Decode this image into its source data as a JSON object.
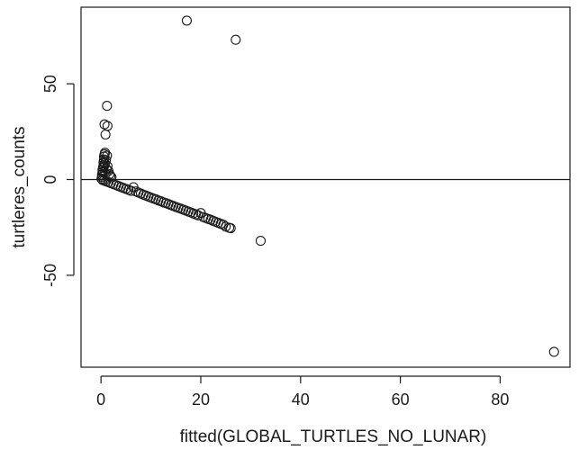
{
  "chart_data": {
    "type": "scatter",
    "title": "",
    "xlabel": "fitted(GLOBAL_TURTLES_NO_LUNAR)",
    "ylabel": "turtleres_counts",
    "xlim": [
      -4,
      94
    ],
    "ylim": [
      -98,
      90
    ],
    "xticks": [
      0,
      20,
      40,
      60,
      80
    ],
    "yticks": [
      -50,
      0,
      50
    ],
    "xtick_labels": [
      "0",
      "20",
      "40",
      "60",
      "80"
    ],
    "ytick_labels": [
      "-50",
      "0",
      "50"
    ],
    "reference_line": {
      "y": 0
    },
    "grid": false,
    "marker": "open-circle",
    "series": [
      {
        "points": [
          [
            0.1,
            0.4
          ],
          [
            0.2,
            1.5
          ],
          [
            0.2,
            2.5
          ],
          [
            0.3,
            3.8
          ],
          [
            0.3,
            5.0
          ],
          [
            0.4,
            6.2
          ],
          [
            0.5,
            7.5
          ],
          [
            0.5,
            9.0
          ],
          [
            0.6,
            10.5
          ],
          [
            0.6,
            12.0
          ],
          [
            0.7,
            13.2
          ],
          [
            0.8,
            14.0
          ],
          [
            0.4,
            4.2
          ],
          [
            0.6,
            6.8
          ],
          [
            0.8,
            8.5
          ],
          [
            1.0,
            10.2
          ],
          [
            1.2,
            12.5
          ],
          [
            0.9,
            3.0
          ],
          [
            1.1,
            5.5
          ],
          [
            1.3,
            7.0
          ],
          [
            1.5,
            4.5
          ],
          [
            1.7,
            2.8
          ],
          [
            1.9,
            1.8
          ],
          [
            2.1,
            1.2
          ],
          [
            0.9,
            23.5
          ],
          [
            0.7,
            28.8
          ],
          [
            1.3,
            28.0
          ],
          [
            1.2,
            38.5
          ],
          [
            0.3,
            -0.2
          ],
          [
            0.6,
            -0.5
          ],
          [
            1.0,
            -0.9
          ],
          [
            1.5,
            -1.4
          ],
          [
            2.0,
            -1.9
          ],
          [
            2.5,
            -2.4
          ],
          [
            3.0,
            -2.9
          ],
          [
            3.5,
            -3.4
          ],
          [
            4.0,
            -3.9
          ],
          [
            4.5,
            -4.4
          ],
          [
            5.0,
            -4.9
          ],
          [
            5.5,
            -5.4
          ],
          [
            6.0,
            -5.9
          ],
          [
            6.5,
            -4.0
          ],
          [
            7.0,
            -6.2
          ],
          [
            7.5,
            -6.8
          ],
          [
            8.0,
            -7.3
          ],
          [
            8.5,
            -7.9
          ],
          [
            9.0,
            -8.4
          ],
          [
            9.5,
            -8.9
          ],
          [
            10.0,
            -9.4
          ],
          [
            10.5,
            -9.9
          ],
          [
            11.0,
            -10.3
          ],
          [
            11.5,
            -10.9
          ],
          [
            12.0,
            -11.3
          ],
          [
            12.5,
            -11.9
          ],
          [
            13.0,
            -12.3
          ],
          [
            13.5,
            -12.8
          ],
          [
            14.0,
            -13.3
          ],
          [
            14.5,
            -13.8
          ],
          [
            15.0,
            -14.3
          ],
          [
            15.5,
            -14.8
          ],
          [
            16.0,
            -15.2
          ],
          [
            16.5,
            -15.7
          ],
          [
            17.0,
            -16.2
          ],
          [
            17.5,
            -16.7
          ],
          [
            18.0,
            -17.2
          ],
          [
            18.5,
            -17.7
          ],
          [
            19.0,
            -18.2
          ],
          [
            19.5,
            -18.7
          ],
          [
            20.0,
            -17.5
          ],
          [
            20.5,
            -19.6
          ],
          [
            21.0,
            -20.1
          ],
          [
            21.5,
            -20.6
          ],
          [
            22.0,
            -21.0
          ],
          [
            22.5,
            -21.6
          ],
          [
            23.0,
            -22.1
          ],
          [
            23.5,
            -22.6
          ],
          [
            24.0,
            -23.1
          ],
          [
            24.5,
            -23.6
          ],
          [
            25.0,
            -24.6
          ],
          [
            25.7,
            -25.2
          ],
          [
            26.0,
            -25.4
          ],
          [
            17.2,
            83.0
          ],
          [
            27.0,
            73.0
          ],
          [
            32.0,
            -32.0
          ],
          [
            90.8,
            -90.0
          ]
        ]
      }
    ]
  }
}
